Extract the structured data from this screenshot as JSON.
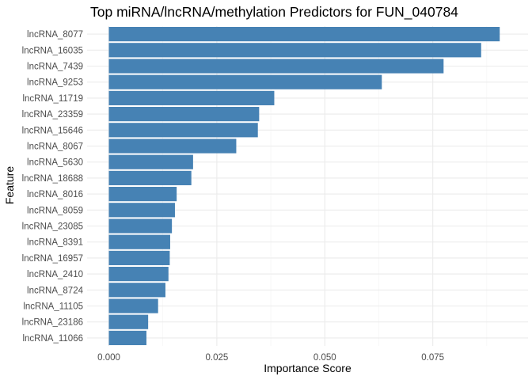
{
  "chart_data": {
    "type": "bar",
    "orientation": "horizontal",
    "title": "Top miRNA/lncRNA/methylation Predictors for FUN_040784",
    "xlabel": "Importance Score",
    "ylabel": "Feature",
    "xlim": [
      0,
      0.0925
    ],
    "x_ticks": [
      "0.000",
      "0.025",
      "0.050",
      "0.075"
    ],
    "x_tick_values": [
      0,
      0.025,
      0.05,
      0.075
    ],
    "grid": true,
    "legend": "none",
    "bar_color": "#4682b4",
    "categories": [
      "lncRNA_8077",
      "lncRNA_16035",
      "lncRNA_7439",
      "lncRNA_9253",
      "lncRNA_11719",
      "lncRNA_23359",
      "lncRNA_15646",
      "lncRNA_8067",
      "lncRNA_5630",
      "lncRNA_18688",
      "lncRNA_8016",
      "lncRNA_8059",
      "lncRNA_23085",
      "lncRNA_8391",
      "lncRNA_16957",
      "lncRNA_2410",
      "lncRNA_8724",
      "lncRNA_11105",
      "lncRNA_23186",
      "lncRNA_11066"
    ],
    "values": [
      0.0905,
      0.0862,
      0.0775,
      0.0632,
      0.0383,
      0.0348,
      0.0345,
      0.0295,
      0.0195,
      0.0191,
      0.0157,
      0.0153,
      0.0146,
      0.0142,
      0.0141,
      0.0138,
      0.0131,
      0.0114,
      0.0091,
      0.0087
    ]
  }
}
